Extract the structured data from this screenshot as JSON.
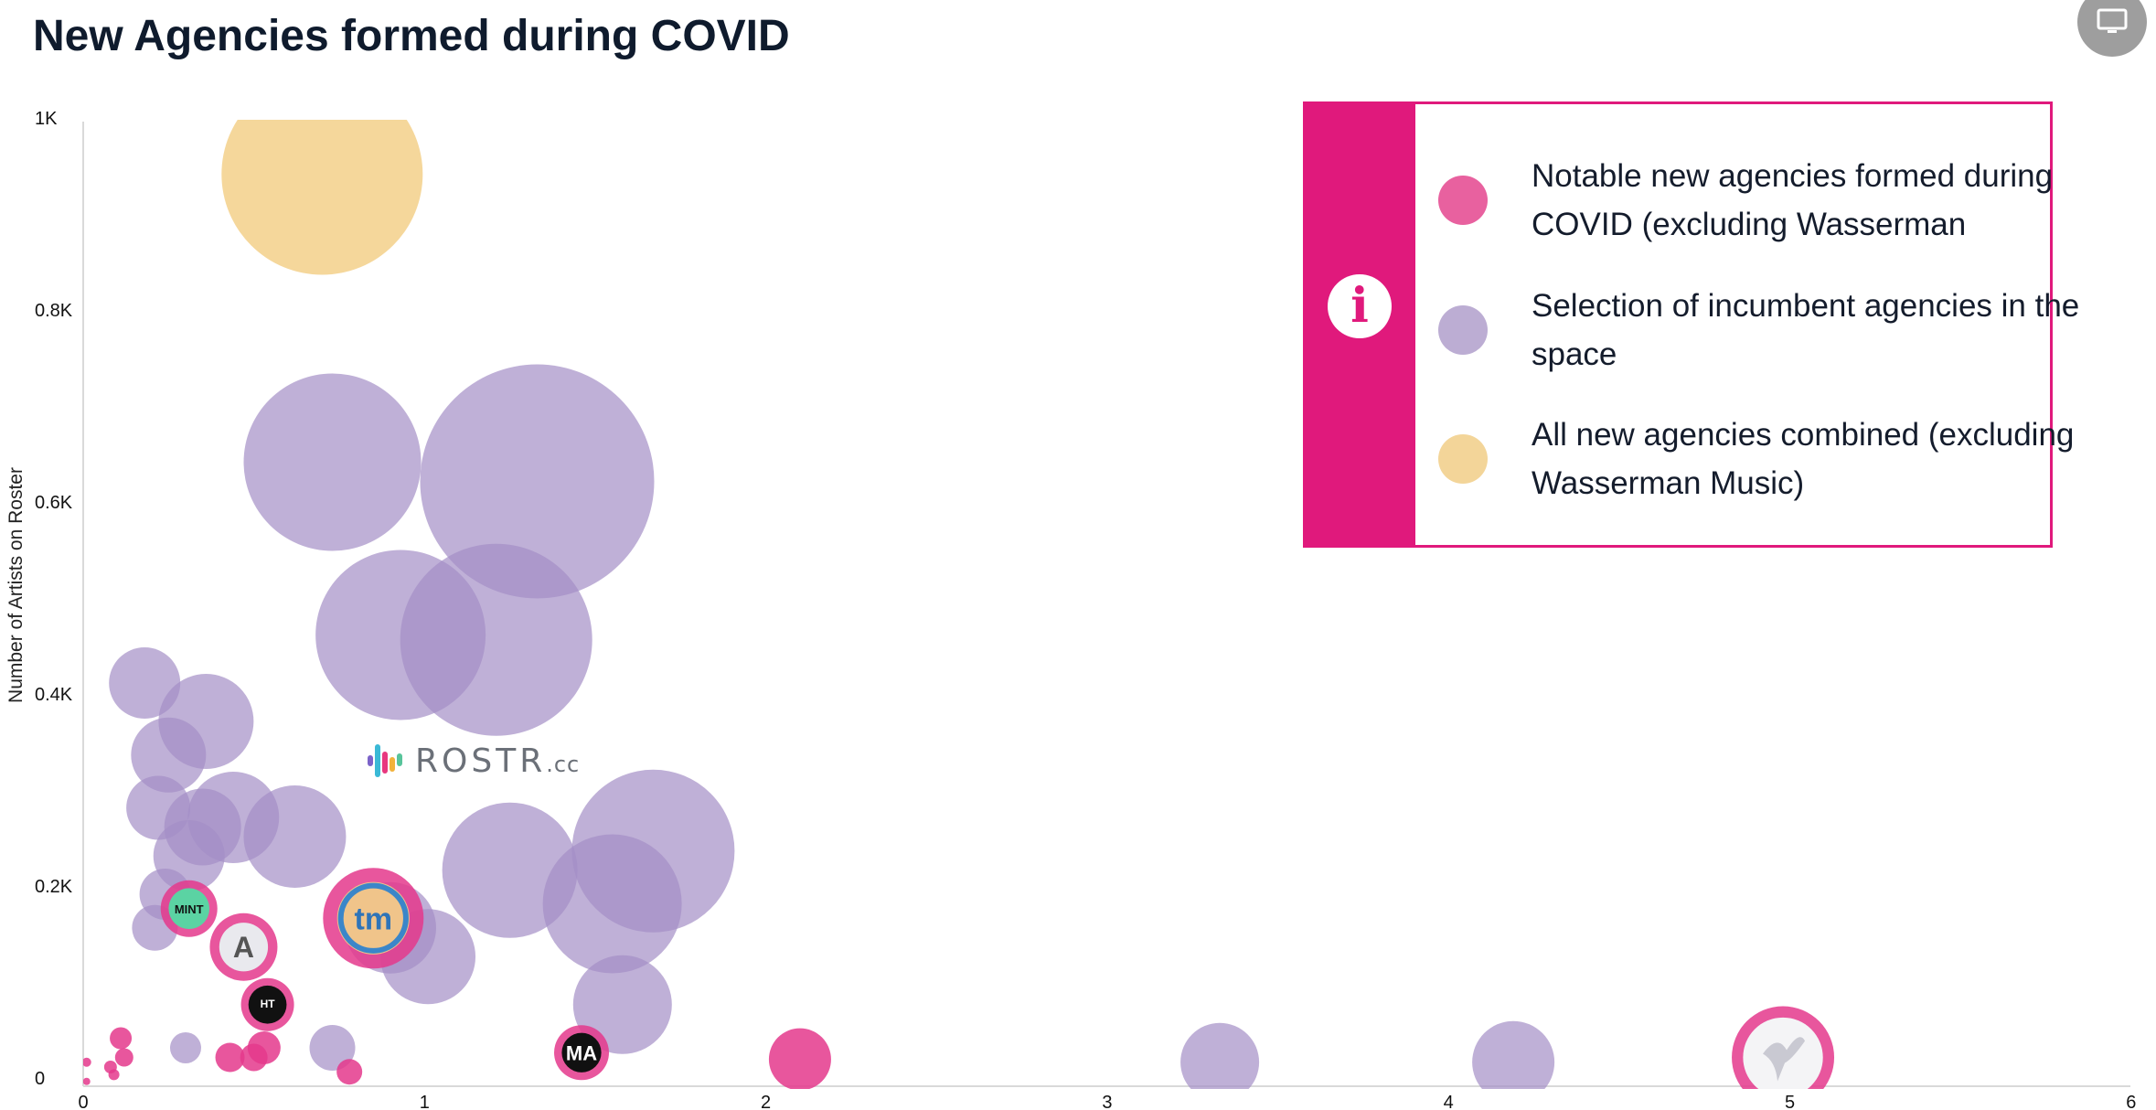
{
  "title": "New Agencies formed during COVID",
  "watermark": {
    "brand": "ROSTR",
    "suffix": ".cc"
  },
  "legend": {
    "items": [
      {
        "label": "Notable new agencies formed during COVID (excluding Wasserman",
        "color": "#e8619f"
      },
      {
        "label": "Selection of incumbent agencies in the space",
        "color": "#bcadd3"
      },
      {
        "label": "All new agencies combined (excluding Wasserman Music)",
        "color": "#f3d599"
      }
    ]
  },
  "colors": {
    "accent": "#e0197c",
    "new": "#e4388c",
    "incumbent": "#a48fc6",
    "combined": "#f3d08a"
  },
  "chart_data": {
    "type": "scatter",
    "title": "New Agencies formed during COVID",
    "xlabel": "",
    "ylabel": "Number of Artists on Roster",
    "xlim": [
      0,
      6
    ],
    "ylim": [
      0,
      1000
    ],
    "x_ticks": [
      "0",
      "1",
      "2",
      "3",
      "4",
      "5",
      "6"
    ],
    "y_ticks": [
      "0",
      "0.2K",
      "0.4K",
      "0.6K",
      "0.8K",
      "1K"
    ],
    "series": [
      {
        "key": "combined",
        "points": [
          {
            "x": 0.7,
            "y": 950,
            "r": 110
          }
        ]
      },
      {
        "key": "incumbent",
        "points": [
          {
            "x": 0.73,
            "y": 650,
            "r": 97
          },
          {
            "x": 1.33,
            "y": 630,
            "r": 128
          },
          {
            "x": 0.93,
            "y": 470,
            "r": 93
          },
          {
            "x": 1.21,
            "y": 465,
            "r": 105
          },
          {
            "x": 0.18,
            "y": 420,
            "r": 39
          },
          {
            "x": 0.36,
            "y": 380,
            "r": 52
          },
          {
            "x": 0.25,
            "y": 345,
            "r": 41
          },
          {
            "x": 0.22,
            "y": 290,
            "r": 35
          },
          {
            "x": 0.44,
            "y": 280,
            "r": 50
          },
          {
            "x": 0.35,
            "y": 270,
            "r": 42
          },
          {
            "x": 0.62,
            "y": 260,
            "r": 56
          },
          {
            "x": 0.31,
            "y": 240,
            "r": 39
          },
          {
            "x": 0.24,
            "y": 200,
            "r": 28
          },
          {
            "x": 0.21,
            "y": 165,
            "r": 25
          },
          {
            "x": 1.25,
            "y": 225,
            "r": 74
          },
          {
            "x": 1.67,
            "y": 245,
            "r": 89
          },
          {
            "x": 1.55,
            "y": 190,
            "r": 76
          },
          {
            "x": 1.01,
            "y": 135,
            "r": 52
          },
          {
            "x": 0.9,
            "y": 165,
            "r": 50
          },
          {
            "x": 1.58,
            "y": 85,
            "r": 54
          },
          {
            "x": 0.73,
            "y": 40,
            "r": 25
          },
          {
            "x": 0.3,
            "y": 40,
            "r": 17
          },
          {
            "x": 3.33,
            "y": 25,
            "r": 43
          },
          {
            "x": 4.19,
            "y": 25,
            "r": 45
          }
        ]
      },
      {
        "key": "new",
        "points": [
          {
            "x": 0.85,
            "y": 175,
            "r": 55,
            "logo": "tm"
          },
          {
            "x": 0.31,
            "y": 185,
            "r": 31,
            "logo": "MINT"
          },
          {
            "x": 0.47,
            "y": 145,
            "r": 37,
            "logo": "A"
          },
          {
            "x": 0.54,
            "y": 85,
            "r": 29,
            "logo": "HT"
          },
          {
            "x": 1.46,
            "y": 35,
            "r": 30,
            "logo": "MA"
          },
          {
            "x": 4.98,
            "y": 30,
            "r": 56,
            "logo": "bird"
          },
          {
            "x": 2.1,
            "y": 28,
            "r": 34
          },
          {
            "x": 0.11,
            "y": 50,
            "r": 12
          },
          {
            "x": 0.12,
            "y": 30,
            "r": 10
          },
          {
            "x": 0.08,
            "y": 20,
            "r": 7
          },
          {
            "x": 0.09,
            "y": 12,
            "r": 6
          },
          {
            "x": 0.43,
            "y": 30,
            "r": 16
          },
          {
            "x": 0.5,
            "y": 30,
            "r": 15
          },
          {
            "x": 0.53,
            "y": 40,
            "r": 18
          },
          {
            "x": 0.78,
            "y": 15,
            "r": 14
          },
          {
            "x": 0.01,
            "y": 25,
            "r": 5
          },
          {
            "x": 0.01,
            "y": 5,
            "r": 4
          }
        ]
      }
    ],
    "grid": false,
    "legend_position": "top-right"
  }
}
